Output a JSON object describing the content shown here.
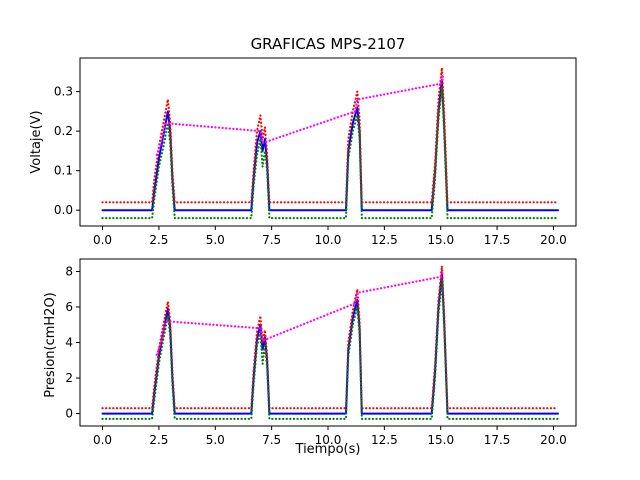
{
  "title": "GRAFICAS MPS-2107",
  "xlabel": "Tiempo(s)",
  "chart_data": [
    {
      "type": "line",
      "ylabel": "Voltaje(V)",
      "xlim": [
        -1.0,
        21.0
      ],
      "ylim": [
        -0.04,
        0.385
      ],
      "xticks": [
        "0.0",
        "2.5",
        "5.0",
        "7.5",
        "10.0",
        "12.5",
        "15.0",
        "17.5",
        "20.0"
      ],
      "xtick_values": [
        0,
        2.5,
        5,
        7.5,
        10,
        12.5,
        15,
        17.5,
        20
      ],
      "yticks": [
        "0.0",
        "0.1",
        "0.2",
        "0.3"
      ],
      "ytick_values": [
        0,
        0.1,
        0.2,
        0.3
      ],
      "series": [
        {
          "color": "#0000ff",
          "style": "solid",
          "x": [
            0,
            2.2,
            2.3,
            2.5,
            2.7,
            2.9,
            3.0,
            3.1,
            3.2,
            6.6,
            6.7,
            6.85,
            7.0,
            7.1,
            7.2,
            7.3,
            7.4,
            10.8,
            10.9,
            11.1,
            11.3,
            11.4,
            11.5,
            14.6,
            14.75,
            14.9,
            15.05,
            15.15,
            15.3,
            20.2
          ],
          "y": [
            0,
            0,
            0.05,
            0.13,
            0.19,
            0.25,
            0.2,
            0.08,
            0,
            0,
            0.08,
            0.17,
            0.2,
            0.15,
            0.18,
            0.12,
            0,
            0,
            0.15,
            0.22,
            0.26,
            0.2,
            0,
            0,
            0.1,
            0.25,
            0.33,
            0.22,
            0,
            0
          ]
        },
        {
          "color": "#ff0000",
          "style": "dotted",
          "x": [
            0,
            2.2,
            2.3,
            2.5,
            2.7,
            2.9,
            3.0,
            3.1,
            3.2,
            6.6,
            6.7,
            6.85,
            7.0,
            7.1,
            7.2,
            7.3,
            7.4,
            10.8,
            10.9,
            11.1,
            11.3,
            11.4,
            11.5,
            14.6,
            14.75,
            14.9,
            15.05,
            15.15,
            15.3,
            20.2
          ],
          "y": [
            0.02,
            0.02,
            0.08,
            0.16,
            0.22,
            0.28,
            0.22,
            0.1,
            0.02,
            0.02,
            0.1,
            0.2,
            0.24,
            0.18,
            0.21,
            0.14,
            0.02,
            0.02,
            0.18,
            0.25,
            0.3,
            0.23,
            0.02,
            0.02,
            0.12,
            0.28,
            0.36,
            0.25,
            0.02,
            0.02
          ]
        },
        {
          "color": "#008000",
          "style": "dotted",
          "x": [
            0,
            2.2,
            2.3,
            2.5,
            2.7,
            2.9,
            3.0,
            3.1,
            3.2,
            6.6,
            6.7,
            6.85,
            7.0,
            7.1,
            7.2,
            7.3,
            7.4,
            10.8,
            10.9,
            11.1,
            11.3,
            11.4,
            11.5,
            14.6,
            14.75,
            14.9,
            15.05,
            15.15,
            15.3,
            20.2
          ],
          "y": [
            -0.02,
            -0.02,
            0.03,
            0.11,
            0.16,
            0.22,
            0.17,
            0.06,
            -0.02,
            -0.02,
            0.06,
            0.14,
            0.18,
            0.11,
            0.15,
            0.1,
            -0.02,
            -0.02,
            0.13,
            0.2,
            0.24,
            0.18,
            -0.02,
            -0.02,
            0.08,
            0.23,
            0.31,
            0.2,
            -0.02,
            -0.02
          ]
        },
        {
          "color": "#ff00ff",
          "style": "dotted",
          "x": [
            2.4,
            2.6,
            2.8,
            7.0,
            7.1,
            11.2,
            11.3,
            15.0,
            15.1
          ],
          "y": [
            0.14,
            0.17,
            0.22,
            0.2,
            0.17,
            0.25,
            0.28,
            0.32,
            0.34
          ]
        }
      ]
    },
    {
      "type": "line",
      "ylabel": "Presion(cmH2O)",
      "xlim": [
        -1.0,
        21.0
      ],
      "ylim": [
        -0.7,
        8.7
      ],
      "xticks": [
        "0.0",
        "2.5",
        "5.0",
        "7.5",
        "10.0",
        "12.5",
        "15.0",
        "17.5",
        "20.0"
      ],
      "xtick_values": [
        0,
        2.5,
        5,
        7.5,
        10,
        12.5,
        15,
        17.5,
        20
      ],
      "yticks": [
        "0",
        "2",
        "4",
        "6",
        "8"
      ],
      "ytick_values": [
        0,
        2,
        4,
        6,
        8
      ],
      "series": [
        {
          "color": "#0000ff",
          "style": "solid",
          "x": [
            0,
            2.2,
            2.3,
            2.5,
            2.7,
            2.9,
            3.0,
            3.1,
            3.2,
            6.6,
            6.7,
            6.85,
            7.0,
            7.1,
            7.2,
            7.3,
            7.4,
            10.8,
            10.9,
            11.1,
            11.3,
            11.4,
            11.5,
            14.6,
            14.75,
            14.9,
            15.05,
            15.15,
            15.3,
            20.2
          ],
          "y": [
            0,
            0,
            1.2,
            3.2,
            4.6,
            5.9,
            4.8,
            2.0,
            0,
            0,
            2.0,
            4.2,
            5.0,
            3.6,
            4.3,
            3.0,
            0,
            0,
            3.6,
            5.4,
            6.4,
            4.8,
            0,
            0,
            2.4,
            6.0,
            7.9,
            5.3,
            0,
            0
          ]
        },
        {
          "color": "#ff0000",
          "style": "dotted",
          "x": [
            0,
            2.2,
            2.3,
            2.5,
            2.7,
            2.9,
            3.0,
            3.1,
            3.2,
            6.6,
            6.7,
            6.85,
            7.0,
            7.1,
            7.2,
            7.3,
            7.4,
            10.8,
            10.9,
            11.1,
            11.3,
            11.4,
            11.5,
            14.6,
            14.75,
            14.9,
            15.05,
            15.15,
            15.3,
            20.2
          ],
          "y": [
            0.3,
            0.3,
            1.6,
            3.6,
            5.0,
            6.3,
            5.2,
            2.4,
            0.3,
            0.3,
            2.4,
            4.6,
            5.5,
            4.0,
            4.7,
            3.3,
            0.3,
            0.3,
            4.0,
            5.8,
            7.0,
            5.2,
            0.3,
            0.3,
            2.8,
            6.4,
            8.3,
            5.7,
            0.3,
            0.3
          ]
        },
        {
          "color": "#008000",
          "style": "dotted",
          "x": [
            0,
            2.2,
            2.3,
            2.5,
            2.7,
            2.9,
            3.0,
            3.1,
            3.2,
            6.6,
            6.7,
            6.85,
            7.0,
            7.1,
            7.2,
            7.3,
            7.4,
            10.8,
            10.9,
            11.1,
            11.3,
            11.4,
            11.5,
            14.6,
            14.75,
            14.9,
            15.05,
            15.15,
            15.3,
            20.2
          ],
          "y": [
            -0.3,
            -0.3,
            0.8,
            2.8,
            4.2,
            5.5,
            4.4,
            1.6,
            -0.3,
            -0.3,
            1.6,
            3.8,
            4.6,
            2.8,
            3.9,
            2.6,
            -0.3,
            -0.3,
            3.2,
            5.0,
            6.0,
            4.4,
            -0.3,
            -0.3,
            2.0,
            5.6,
            7.5,
            4.9,
            -0.3,
            -0.3
          ]
        },
        {
          "color": "#ff00ff",
          "style": "dotted",
          "x": [
            2.4,
            2.6,
            2.8,
            7.0,
            7.1,
            11.2,
            11.3,
            15.0,
            15.1
          ],
          "y": [
            3.3,
            4.0,
            5.2,
            4.8,
            4.1,
            6.2,
            6.8,
            7.7,
            8.0
          ]
        }
      ]
    }
  ]
}
